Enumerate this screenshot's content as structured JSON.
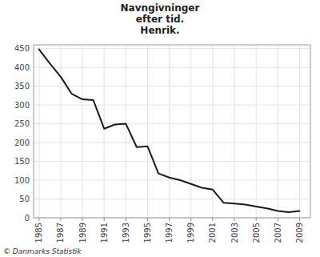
{
  "chart_data": {
    "type": "line",
    "title": "Navngivninger\nefter tid.\nHenrik.",
    "annotations": [
      "© Danmarks Statistik"
    ],
    "x": [
      1985,
      1986,
      1987,
      1988,
      1989,
      1990,
      1991,
      1992,
      1993,
      1994,
      1995,
      1996,
      1997,
      1998,
      1999,
      2000,
      2001,
      2002,
      2003,
      2004,
      2005,
      2006,
      2007,
      2008,
      2009
    ],
    "values": [
      448,
      410,
      375,
      330,
      315,
      313,
      237,
      248,
      250,
      188,
      190,
      118,
      107,
      100,
      90,
      80,
      75,
      40,
      38,
      35,
      30,
      25,
      18,
      15,
      18
    ],
    "color": "#1a1a1a",
    "xlim": [
      1984.5,
      2010.0
    ],
    "xticks": [
      1985,
      1987,
      1989,
      1991,
      1993,
      1995,
      1997,
      1999,
      2001,
      2003,
      2005,
      2007,
      2009
    ],
    "ylim": [
      0,
      460
    ],
    "yticks": [
      0,
      50,
      100,
      150,
      200,
      250,
      300,
      350,
      400,
      450
    ],
    "grid": true
  }
}
